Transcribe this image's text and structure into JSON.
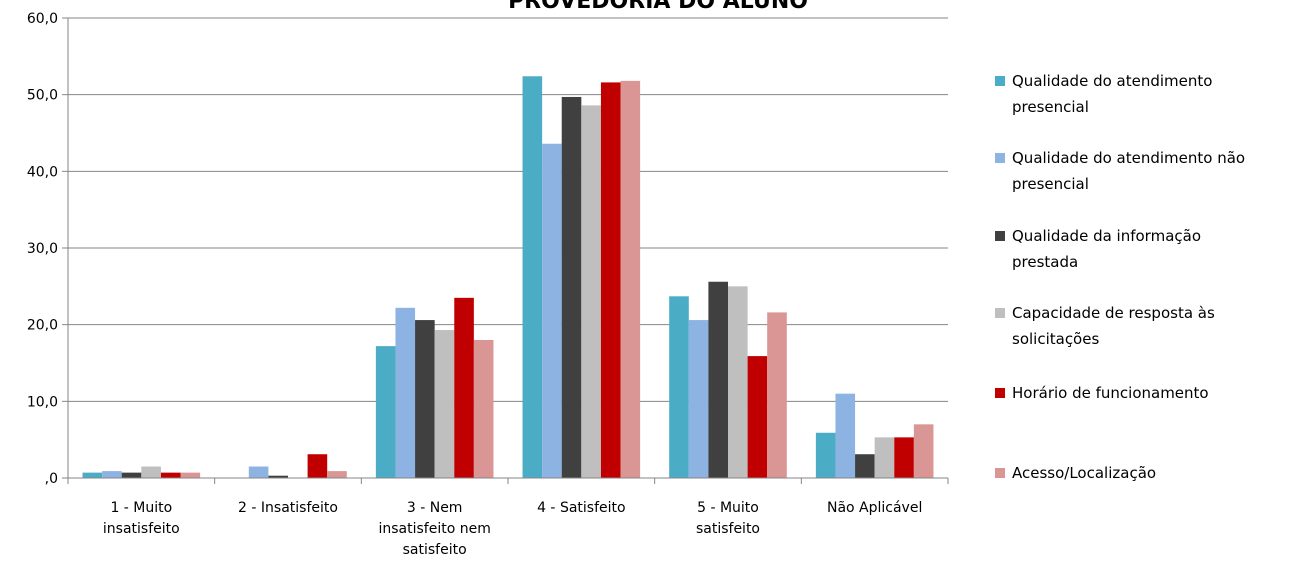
{
  "chart_data": {
    "type": "bar",
    "title": "PROVEDORIA DO ALUNO",
    "xlabel": "",
    "ylabel": "",
    "ylim": [
      0,
      60
    ],
    "ytick_labels": [
      ",0",
      "10,0",
      "20,0",
      "30,0",
      "40,0",
      "50,0",
      "60,0"
    ],
    "yticks": [
      0,
      10,
      20,
      30,
      40,
      50,
      60
    ],
    "grid": true,
    "legend_position": "right",
    "categories": [
      [
        "1 - Muito",
        "insatisfeito"
      ],
      [
        "2 - Insatisfeito"
      ],
      [
        "3 - Nem",
        "insatisfeito nem",
        "satisfeito"
      ],
      [
        "4 - Satisfeito"
      ],
      [
        "5 - Muito",
        "satisfeito"
      ],
      [
        "Não Aplicável"
      ]
    ],
    "series": [
      {
        "name": "Qualidade do atendimento presencial",
        "legend_lines": [
          "Qualidade do atendimento",
          "presencial"
        ],
        "color": "#4bacc6",
        "values": [
          0.7,
          0.0,
          17.2,
          52.4,
          23.7,
          5.9
        ]
      },
      {
        "name": "Qualidade do atendimento não presencial",
        "legend_lines": [
          "Qualidade do atendimento não",
          "presencial"
        ],
        "color": "#8db3e2",
        "values": [
          0.9,
          1.5,
          22.2,
          43.6,
          20.6,
          11.0
        ]
      },
      {
        "name": "Qualidade da informação prestada",
        "legend_lines": [
          "Qualidade da informação",
          "prestada"
        ],
        "color": "#404040",
        "values": [
          0.7,
          0.3,
          20.6,
          49.7,
          25.6,
          3.1
        ]
      },
      {
        "name": "Capacidade de resposta às solicitações",
        "legend_lines": [
          "Capacidade de resposta às",
          "solicitações"
        ],
        "color": "#bfbfbf",
        "values": [
          1.5,
          0.0,
          19.3,
          48.6,
          25.0,
          5.3
        ]
      },
      {
        "name": "Horário de funcionamento",
        "legend_lines": [
          "Horário de funcionamento"
        ],
        "color": "#c00000",
        "values": [
          0.7,
          3.1,
          23.5,
          51.6,
          15.9,
          5.3
        ]
      },
      {
        "name": "Acesso/Localização",
        "legend_lines": [
          "Acesso/Localização"
        ],
        "color": "#da9694",
        "values": [
          0.7,
          0.9,
          18.0,
          51.8,
          21.6,
          7.0
        ]
      }
    ]
  }
}
